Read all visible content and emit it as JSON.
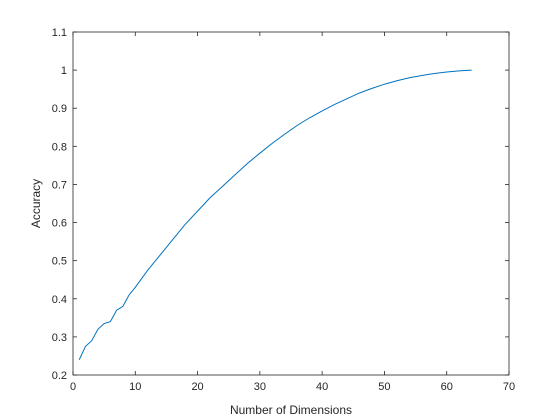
{
  "chart_data": {
    "type": "line",
    "title": "",
    "xlabel": "Number of Dimensions",
    "ylabel": "Accuracy",
    "xlim": [
      0,
      70
    ],
    "ylim": [
      0.2,
      1.1
    ],
    "xticks": [
      0,
      10,
      20,
      30,
      40,
      50,
      60,
      70
    ],
    "yticks": [
      0.2,
      0.3,
      0.4,
      0.5,
      0.6,
      0.7,
      0.8,
      0.9,
      1,
      1.1
    ],
    "xtick_labels": [
      "0",
      "10",
      "20",
      "30",
      "40",
      "50",
      "60",
      "70"
    ],
    "ytick_labels": [
      "0.2",
      "0.3",
      "0.4",
      "0.5",
      "0.6",
      "0.7",
      "0.8",
      "0.9",
      "1",
      "1.1"
    ],
    "grid": false,
    "line_color": "#0072BD",
    "series": [
      {
        "x": [
          1,
          2,
          3,
          4,
          5,
          6,
          7,
          8,
          9,
          10,
          12,
          14,
          16,
          18,
          20,
          22,
          24,
          26,
          28,
          30,
          32,
          34,
          36,
          38,
          40,
          42,
          44,
          46,
          48,
          50,
          52,
          54,
          56,
          58,
          60,
          62,
          64
        ],
        "values": [
          0.24,
          0.275,
          0.29,
          0.32,
          0.335,
          0.34,
          0.37,
          0.38,
          0.41,
          0.43,
          0.475,
          0.515,
          0.555,
          0.595,
          0.63,
          0.665,
          0.695,
          0.725,
          0.755,
          0.782,
          0.808,
          0.832,
          0.855,
          0.875,
          0.893,
          0.91,
          0.925,
          0.94,
          0.952,
          0.963,
          0.972,
          0.98,
          0.986,
          0.991,
          0.995,
          0.998,
          1.0
        ]
      }
    ]
  }
}
